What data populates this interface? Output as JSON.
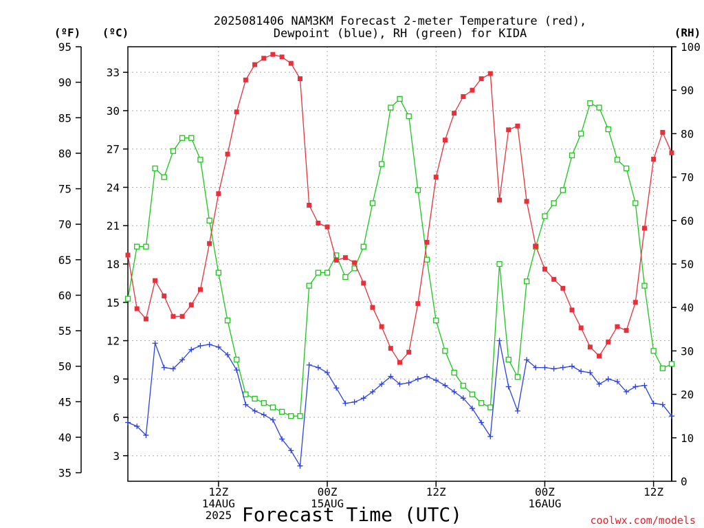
{
  "chart_data": {
    "type": "line",
    "title_lines": [
      "2025081406 NAM3KM Forecast 2-meter Temperature (red),",
      "Dewpoint (blue), RH (green) for KIDA"
    ],
    "xlabel": "Forecast Time (UTC)",
    "credit": "coolwx.com/models",
    "units": {
      "left_outer": "(ºF)",
      "left_inner": "(ºC)",
      "right": "(RH)"
    },
    "x_hours_range": [
      -2,
      28
    ],
    "celsius_range": [
      1.0,
      35.0
    ],
    "rh_range": [
      0,
      100
    ],
    "x_ticks": [
      {
        "hour": 3,
        "lines": [
          "12Z",
          "14AUG",
          "2025"
        ]
      },
      {
        "hour": 9,
        "lines": [
          "00Z",
          "15AUG"
        ]
      },
      {
        "hour": 15,
        "lines": [
          "12Z"
        ]
      },
      {
        "hour": 21,
        "lines": [
          "00Z",
          "16AUG"
        ]
      },
      {
        "hour": 27,
        "lines": [
          "12Z"
        ]
      }
    ],
    "fahrenheit_ticks": [
      95,
      90,
      85,
      80,
      75,
      70,
      65,
      60,
      55,
      50,
      45,
      40,
      35
    ],
    "celsius_ticks": [
      33,
      30,
      27,
      24,
      21,
      18,
      15,
      12,
      9,
      6,
      3
    ],
    "rh_ticks": [
      100,
      90,
      80,
      70,
      60,
      50,
      40,
      30,
      20,
      10,
      0
    ],
    "grid": true,
    "series": [
      {
        "name": "Temperature",
        "unit": "°C",
        "color": "#e8303a",
        "marker": "filled-square",
        "x": [
          -2,
          -1.5,
          -1,
          -0.5,
          0,
          0.5,
          1,
          1.5,
          2,
          2.5,
          3,
          3.5,
          4,
          4.5,
          5,
          5.5,
          6,
          6.5,
          7,
          7.5,
          8,
          8.5,
          9,
          9.5,
          10,
          10.5,
          11,
          11.5,
          12,
          12.5,
          13,
          13.5,
          14,
          14.5,
          15,
          15.5,
          16,
          16.5,
          17,
          17.5,
          18,
          18.5,
          19,
          19.5,
          20,
          20.5,
          21,
          21.5,
          22,
          22.5,
          23,
          23.5,
          24,
          24.5,
          25,
          25.5,
          26,
          26.5,
          27,
          27.5,
          28
        ],
        "values": [
          18.7,
          14.5,
          13.7,
          16.7,
          15.5,
          13.9,
          13.9,
          14.8,
          16.0,
          19.6,
          23.5,
          26.6,
          29.9,
          32.4,
          33.6,
          34.1,
          34.4,
          34.2,
          33.7,
          32.5,
          22.6,
          21.2,
          20.9,
          18.3,
          18.5,
          18.1,
          16.5,
          14.6,
          13.1,
          11.4,
          10.3,
          11.1,
          14.9,
          19.7,
          24.8,
          27.7,
          29.8,
          31.1,
          31.6,
          32.5,
          32.9,
          23.0,
          28.5,
          28.8,
          22.9,
          19.4,
          17.6,
          16.8,
          16.1,
          14.4,
          13.0,
          11.5,
          10.8,
          11.9,
          13.1,
          12.8,
          15.0,
          20.8,
          26.2,
          28.3,
          26.7
        ]
      },
      {
        "name": "Dewpoint",
        "unit": "°C",
        "color": "#2b40e0",
        "marker": "plus",
        "x": [
          -2,
          -1.5,
          -1,
          -0.5,
          0,
          0.5,
          1,
          1.5,
          2,
          2.5,
          3,
          3.5,
          4,
          4.5,
          5,
          5.5,
          6,
          6.5,
          7,
          7.5,
          8,
          8.5,
          9,
          9.5,
          10,
          10.5,
          11,
          11.5,
          12,
          12.5,
          13,
          13.5,
          14,
          14.5,
          15,
          15.5,
          16,
          16.5,
          17,
          17.5,
          18,
          18.5,
          19,
          19.5,
          20,
          20.5,
          21,
          21.5,
          22,
          22.5,
          23,
          23.5,
          24,
          24.5,
          25,
          25.5,
          26,
          26.5,
          27,
          27.5,
          28
        ],
        "values": [
          5.6,
          5.3,
          4.6,
          11.8,
          9.9,
          9.8,
          10.5,
          11.3,
          11.6,
          11.7,
          11.5,
          10.9,
          9.7,
          7.0,
          6.5,
          6.2,
          5.8,
          4.3,
          3.4,
          2.2,
          10.1,
          9.9,
          9.5,
          8.3,
          7.1,
          7.2,
          7.5,
          8.0,
          8.6,
          9.2,
          8.6,
          8.7,
          9.0,
          9.2,
          8.9,
          8.5,
          8.0,
          7.5,
          6.7,
          5.6,
          4.5,
          12.0,
          8.4,
          6.5,
          10.5,
          9.9,
          9.9,
          9.8,
          9.9,
          10.0,
          9.6,
          9.5,
          8.6,
          9.0,
          8.8,
          8.0,
          8.4,
          8.5,
          7.1,
          7.0,
          6.1
        ]
      },
      {
        "name": "RH",
        "unit": "%",
        "color": "#18c818",
        "marker": "open-square",
        "x": [
          -2,
          -1.5,
          -1,
          -0.5,
          0,
          0.5,
          1,
          1.5,
          2,
          2.5,
          3,
          3.5,
          4,
          4.5,
          5,
          5.5,
          6,
          6.5,
          7,
          7.5,
          8,
          8.5,
          9,
          9.5,
          10,
          10.5,
          11,
          11.5,
          12,
          12.5,
          13,
          13.5,
          14,
          14.5,
          15,
          15.5,
          16,
          16.5,
          17,
          17.5,
          18,
          18.5,
          19,
          19.5,
          20,
          20.5,
          21,
          21.5,
          22,
          22.5,
          23,
          23.5,
          24,
          24.5,
          25,
          25.5,
          26,
          26.5,
          27,
          27.5,
          28
        ],
        "values": [
          42,
          54,
          54,
          72,
          70,
          76,
          79,
          79,
          74,
          60,
          48,
          37,
          28,
          20,
          19,
          18,
          17,
          16,
          15,
          15,
          45,
          48,
          48,
          52,
          47,
          49,
          54,
          64,
          73,
          86,
          88,
          84,
          67,
          51,
          37,
          30,
          25,
          22,
          20,
          18,
          17,
          50,
          28,
          24,
          46,
          54,
          61,
          64,
          67,
          75,
          80,
          87,
          86,
          81,
          74,
          72,
          64,
          45,
          30,
          26,
          27
        ]
      }
    ]
  }
}
